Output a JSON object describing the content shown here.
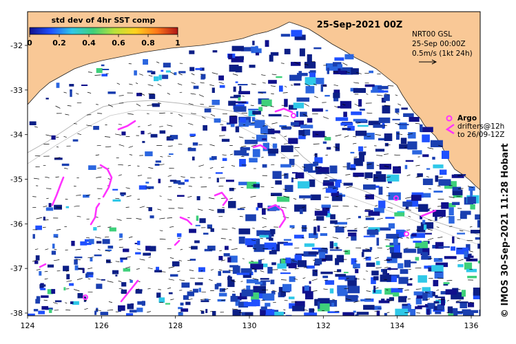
{
  "map": {
    "timestamp": "25-Sep-2021 00Z",
    "colorbar": {
      "title": "std dev of 4hr SST comp",
      "tick_labels": [
        "0",
        "0.2",
        "0.4",
        "0.6",
        "0.8",
        "1"
      ],
      "colors": [
        "#10108c",
        "#1f50ff",
        "#2fc8e8",
        "#3ed07a",
        "#b8e23a",
        "#ffd21e",
        "#ff7a1a",
        "#b01515"
      ]
    },
    "current_info": {
      "line1": "NRT00 GSL",
      "line2": "25-Sep 00:00Z",
      "line3": "0.5m/s (1kt 24h)"
    },
    "legend": {
      "argo_label": "Argo",
      "drifters_line1": "drifters@12h",
      "drifters_line2": "to 26/09-12Z",
      "argo_color": "#ff33ff",
      "drifter_color": "#ff33ff"
    },
    "latitude_labels": [
      "-32",
      "-33",
      "-34",
      "-35",
      "-36",
      "-37",
      "-38"
    ],
    "longitude_labels": [
      "124",
      "126",
      "128",
      "130",
      "132",
      "134",
      "136"
    ],
    "credit": "© IMOS 30-Sep-2021 11:28 Hobart",
    "colors": {
      "land": "#f9c896",
      "ocean": "#ffffff",
      "data_blue": "#1a3fb0",
      "data_dark": "#0c1f86",
      "bathymetry": "#b4b4b4"
    }
  }
}
